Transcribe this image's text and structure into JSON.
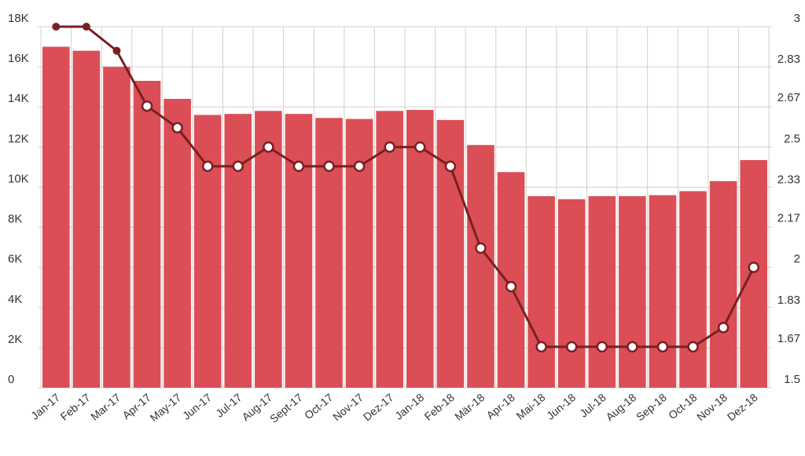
{
  "chart_data": {
    "type": "bar",
    "categories": [
      "Jan-17",
      "Feb-17",
      "Mar-17",
      "Apr-17",
      "May-17",
      "Jun-17",
      "Jul-17",
      "Aug-17",
      "Sept-17",
      "Oct-17",
      "Nov-17",
      "Dez-17",
      "Jan-18",
      "Feb-18",
      "Mär-18",
      "Apr-18",
      "Mai-18",
      "Jun-18",
      "Jul-18",
      "Aug-18",
      "Sep-18",
      "Oct-18",
      "Nov-18",
      "Dez-18"
    ],
    "series": [
      {
        "type": "bar",
        "axis": "left",
        "color": "#db4e55",
        "values": [
          17000,
          16800,
          16000,
          15300,
          14400,
          13600,
          13650,
          13800,
          13650,
          13450,
          13400,
          13800,
          13850,
          13350,
          12100,
          10750,
          9550,
          9400,
          9550,
          9550,
          9600,
          9800,
          10300,
          11350
        ]
      },
      {
        "type": "line",
        "axis": "right",
        "color": "#7a1f22",
        "values": [
          3.0,
          3.0,
          2.9,
          2.67,
          2.58,
          2.42,
          2.42,
          2.5,
          2.42,
          2.42,
          2.42,
          2.5,
          2.5,
          2.42,
          2.08,
          1.92,
          1.67,
          1.67,
          1.67,
          1.67,
          1.67,
          1.67,
          1.75,
          2.0
        ]
      }
    ],
    "y_left": {
      "min": 0,
      "max": 18000,
      "ticks": [
        0,
        2000,
        4000,
        6000,
        8000,
        10000,
        12000,
        14000,
        16000,
        18000
      ],
      "tick_labels": [
        "0",
        "2K",
        "4K",
        "6K",
        "8K",
        "10K",
        "12K",
        "14K",
        "16K",
        "18K"
      ]
    },
    "y_right": {
      "min": 1.5,
      "max": 3.0,
      "ticks": [
        1.5,
        1.67,
        1.83,
        2.0,
        2.17,
        2.33,
        2.5,
        2.67,
        2.83,
        3.0
      ],
      "tick_labels": [
        "1.5",
        "1.67",
        "1.83",
        "2",
        "2.17",
        "2.33",
        "2.5",
        "2.67",
        "2.83",
        "3"
      ]
    },
    "title": "",
    "xlabel": "",
    "ylabel": "",
    "grid": true,
    "legend": "none"
  }
}
